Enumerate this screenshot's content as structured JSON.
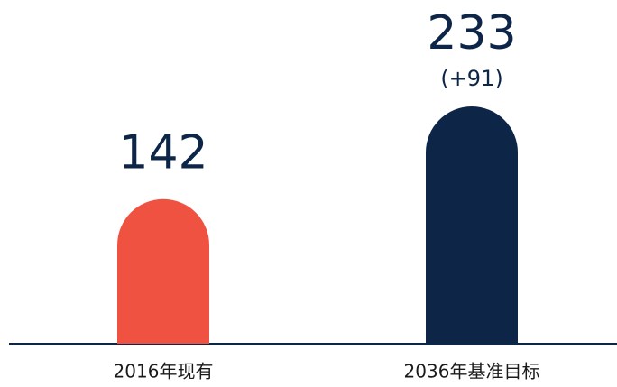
{
  "chart_data": {
    "type": "bar",
    "categories": [
      "2016年现有",
      "2036年基准目标"
    ],
    "values": [
      142,
      233
    ],
    "colors": [
      "#f05242",
      "#0d2547"
    ],
    "annotation": "(+91)"
  }
}
